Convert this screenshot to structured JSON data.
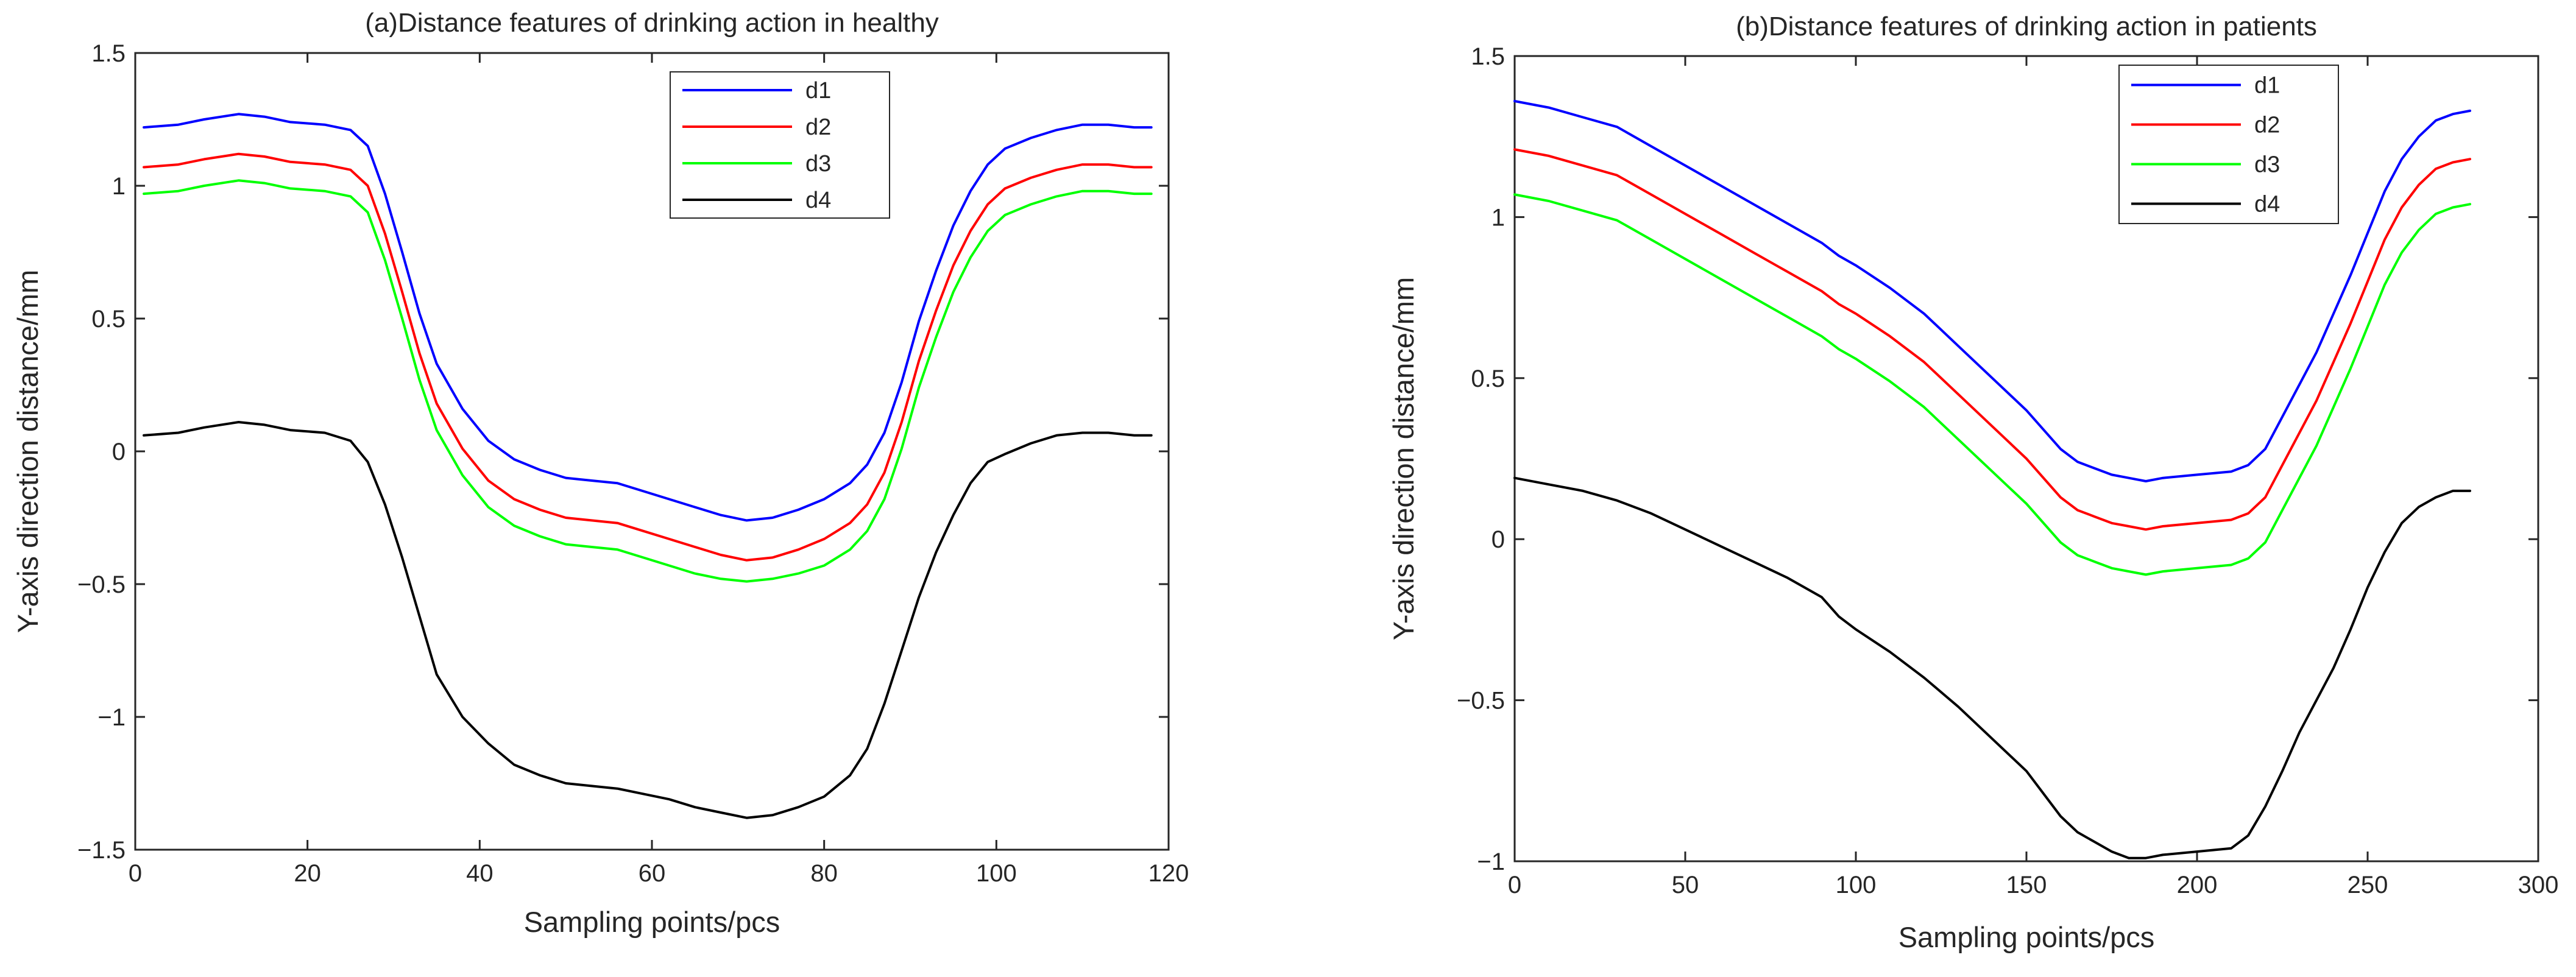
{
  "chart_data": [
    {
      "type": "line",
      "title": "(a)Distance features of drinking action in healthy",
      "xlabel": "Sampling points/pcs",
      "ylabel": "Y-axis direction distance/mm",
      "xlim": [
        0,
        120
      ],
      "ylim": [
        -1.5,
        1.5
      ],
      "xticks": [
        "0",
        "20",
        "40",
        "60",
        "80",
        "100",
        "120"
      ],
      "yticks": [
        "1.5",
        "1",
        "0.5",
        "0",
        "−0.5",
        "−1",
        "−1.5"
      ],
      "grid": false,
      "legend_position": "top-center",
      "series": [
        {
          "name": "d1",
          "color": "#0000ff",
          "x": [
            1,
            5,
            8,
            12,
            15,
            18,
            22,
            25,
            27,
            29,
            31,
            33,
            35,
            38,
            41,
            44,
            47,
            50,
            53,
            56,
            59,
            62,
            65,
            68,
            71,
            74,
            77,
            80,
            83,
            85,
            87,
            89,
            91,
            93,
            95,
            97,
            99,
            101,
            104,
            107,
            110,
            113,
            116,
            118
          ],
          "y": [
            1.22,
            1.23,
            1.25,
            1.27,
            1.26,
            1.24,
            1.23,
            1.21,
            1.15,
            0.97,
            0.75,
            0.52,
            0.33,
            0.16,
            0.04,
            -0.03,
            -0.07,
            -0.1,
            -0.11,
            -0.12,
            -0.15,
            -0.18,
            -0.21,
            -0.24,
            -0.26,
            -0.25,
            -0.22,
            -0.18,
            -0.12,
            -0.05,
            0.07,
            0.26,
            0.49,
            0.68,
            0.85,
            0.98,
            1.08,
            1.14,
            1.18,
            1.21,
            1.23,
            1.23,
            1.22,
            1.22
          ]
        },
        {
          "name": "d2",
          "color": "#ff0000",
          "x": [
            1,
            5,
            8,
            12,
            15,
            18,
            22,
            25,
            27,
            29,
            31,
            33,
            35,
            38,
            41,
            44,
            47,
            50,
            53,
            56,
            59,
            62,
            65,
            68,
            71,
            74,
            77,
            80,
            83,
            85,
            87,
            89,
            91,
            93,
            95,
            97,
            99,
            101,
            104,
            107,
            110,
            113,
            116,
            118
          ],
          "y": [
            1.07,
            1.08,
            1.1,
            1.12,
            1.11,
            1.09,
            1.08,
            1.06,
            1.0,
            0.82,
            0.6,
            0.37,
            0.18,
            0.01,
            -0.11,
            -0.18,
            -0.22,
            -0.25,
            -0.26,
            -0.27,
            -0.3,
            -0.33,
            -0.36,
            -0.39,
            -0.41,
            -0.4,
            -0.37,
            -0.33,
            -0.27,
            -0.2,
            -0.08,
            0.11,
            0.34,
            0.53,
            0.7,
            0.83,
            0.93,
            0.99,
            1.03,
            1.06,
            1.08,
            1.08,
            1.07,
            1.07
          ]
        },
        {
          "name": "d3",
          "color": "#00ff00",
          "x": [
            1,
            5,
            8,
            12,
            15,
            18,
            22,
            25,
            27,
            29,
            31,
            33,
            35,
            38,
            41,
            44,
            47,
            50,
            53,
            56,
            59,
            62,
            65,
            68,
            71,
            74,
            77,
            80,
            83,
            85,
            87,
            89,
            91,
            93,
            95,
            97,
            99,
            101,
            104,
            107,
            110,
            113,
            116,
            118
          ],
          "y": [
            0.97,
            0.98,
            1.0,
            1.02,
            1.01,
            0.99,
            0.98,
            0.96,
            0.9,
            0.72,
            0.5,
            0.27,
            0.08,
            -0.09,
            -0.21,
            -0.28,
            -0.32,
            -0.35,
            -0.36,
            -0.37,
            -0.4,
            -0.43,
            -0.46,
            -0.48,
            -0.49,
            -0.48,
            -0.46,
            -0.43,
            -0.37,
            -0.3,
            -0.18,
            0.01,
            0.24,
            0.43,
            0.6,
            0.73,
            0.83,
            0.89,
            0.93,
            0.96,
            0.98,
            0.98,
            0.97,
            0.97
          ]
        },
        {
          "name": "d4",
          "color": "#000000",
          "x": [
            1,
            5,
            8,
            12,
            15,
            18,
            22,
            25,
            27,
            29,
            31,
            33,
            35,
            38,
            41,
            44,
            47,
            50,
            53,
            56,
            59,
            62,
            65,
            68,
            71,
            74,
            77,
            80,
            83,
            85,
            87,
            89,
            91,
            93,
            95,
            97,
            99,
            101,
            104,
            107,
            110,
            113,
            116,
            118
          ],
          "y": [
            0.06,
            0.07,
            0.09,
            0.11,
            0.1,
            0.08,
            0.07,
            0.04,
            -0.04,
            -0.2,
            -0.4,
            -0.62,
            -0.84,
            -1.0,
            -1.1,
            -1.18,
            -1.22,
            -1.25,
            -1.26,
            -1.27,
            -1.29,
            -1.31,
            -1.34,
            -1.36,
            -1.38,
            -1.37,
            -1.34,
            -1.3,
            -1.22,
            -1.12,
            -0.95,
            -0.75,
            -0.55,
            -0.38,
            -0.24,
            -0.12,
            -0.04,
            -0.01,
            0.03,
            0.06,
            0.07,
            0.07,
            0.06,
            0.06
          ]
        }
      ]
    },
    {
      "type": "line",
      "title": "(b)Distance features of drinking action in patients",
      "xlabel": "Sampling points/pcs",
      "ylabel": "Y-axis direction distance/mm",
      "xlim": [
        0,
        300
      ],
      "ylim": [
        -1,
        1.5
      ],
      "xticks": [
        "0",
        "50",
        "100",
        "150",
        "200",
        "250",
        "300"
      ],
      "yticks": [
        "1.5",
        "1",
        "0.5",
        "0",
        "−0.5",
        "−1"
      ],
      "grid": false,
      "legend_position": "top-center",
      "series": [
        {
          "name": "d1",
          "color": "#0000ff",
          "x": [
            0,
            10,
            20,
            30,
            40,
            50,
            60,
            70,
            80,
            90,
            95,
            100,
            110,
            120,
            130,
            140,
            150,
            160,
            165,
            170,
            175,
            180,
            185,
            190,
            200,
            210,
            215,
            220,
            225,
            230,
            235,
            240,
            245,
            250,
            255,
            260,
            265,
            270,
            275,
            280
          ],
          "y": [
            1.36,
            1.34,
            1.31,
            1.28,
            1.22,
            1.16,
            1.1,
            1.04,
            0.98,
            0.92,
            0.88,
            0.85,
            0.78,
            0.7,
            0.6,
            0.5,
            0.4,
            0.28,
            0.24,
            0.22,
            0.2,
            0.19,
            0.18,
            0.19,
            0.2,
            0.21,
            0.23,
            0.28,
            0.38,
            0.48,
            0.58,
            0.7,
            0.82,
            0.95,
            1.08,
            1.18,
            1.25,
            1.3,
            1.32,
            1.33
          ]
        },
        {
          "name": "d2",
          "color": "#ff0000",
          "x": [
            0,
            10,
            20,
            30,
            40,
            50,
            60,
            70,
            80,
            90,
            95,
            100,
            110,
            120,
            130,
            140,
            150,
            160,
            165,
            170,
            175,
            180,
            185,
            190,
            200,
            210,
            215,
            220,
            225,
            230,
            235,
            240,
            245,
            250,
            255,
            260,
            265,
            270,
            275,
            280
          ],
          "y": [
            1.21,
            1.19,
            1.16,
            1.13,
            1.07,
            1.01,
            0.95,
            0.89,
            0.83,
            0.77,
            0.73,
            0.7,
            0.63,
            0.55,
            0.45,
            0.35,
            0.25,
            0.13,
            0.09,
            0.07,
            0.05,
            0.04,
            0.03,
            0.04,
            0.05,
            0.06,
            0.08,
            0.13,
            0.23,
            0.33,
            0.43,
            0.55,
            0.67,
            0.8,
            0.93,
            1.03,
            1.1,
            1.15,
            1.17,
            1.18
          ]
        },
        {
          "name": "d3",
          "color": "#00ff00",
          "x": [
            0,
            10,
            20,
            30,
            40,
            50,
            60,
            70,
            80,
            90,
            95,
            100,
            110,
            120,
            130,
            140,
            150,
            160,
            165,
            170,
            175,
            180,
            185,
            190,
            200,
            210,
            215,
            220,
            225,
            230,
            235,
            240,
            245,
            250,
            255,
            260,
            265,
            270,
            275,
            280
          ],
          "y": [
            1.07,
            1.05,
            1.02,
            0.99,
            0.93,
            0.87,
            0.81,
            0.75,
            0.69,
            0.63,
            0.59,
            0.56,
            0.49,
            0.41,
            0.31,
            0.21,
            0.11,
            -0.01,
            -0.05,
            -0.07,
            -0.09,
            -0.1,
            -0.11,
            -0.1,
            -0.09,
            -0.08,
            -0.06,
            -0.01,
            0.09,
            0.19,
            0.29,
            0.41,
            0.53,
            0.66,
            0.79,
            0.89,
            0.96,
            1.01,
            1.03,
            1.04
          ]
        },
        {
          "name": "d4",
          "color": "#000000",
          "x": [
            0,
            10,
            20,
            30,
            40,
            50,
            60,
            70,
            80,
            90,
            95,
            100,
            110,
            120,
            130,
            140,
            150,
            160,
            165,
            170,
            175,
            180,
            185,
            190,
            200,
            210,
            215,
            220,
            225,
            230,
            235,
            240,
            245,
            250,
            255,
            260,
            265,
            270,
            275,
            280
          ],
          "y": [
            0.19,
            0.17,
            0.15,
            0.12,
            0.08,
            0.03,
            -0.02,
            -0.07,
            -0.12,
            -0.18,
            -0.24,
            -0.28,
            -0.35,
            -0.43,
            -0.52,
            -0.62,
            -0.72,
            -0.86,
            -0.91,
            -0.94,
            -0.97,
            -0.99,
            -0.99,
            -0.98,
            -0.97,
            -0.96,
            -0.92,
            -0.83,
            -0.72,
            -0.6,
            -0.5,
            -0.4,
            -0.28,
            -0.15,
            -0.04,
            0.05,
            0.1,
            0.13,
            0.15,
            0.15
          ]
        }
      ]
    }
  ]
}
